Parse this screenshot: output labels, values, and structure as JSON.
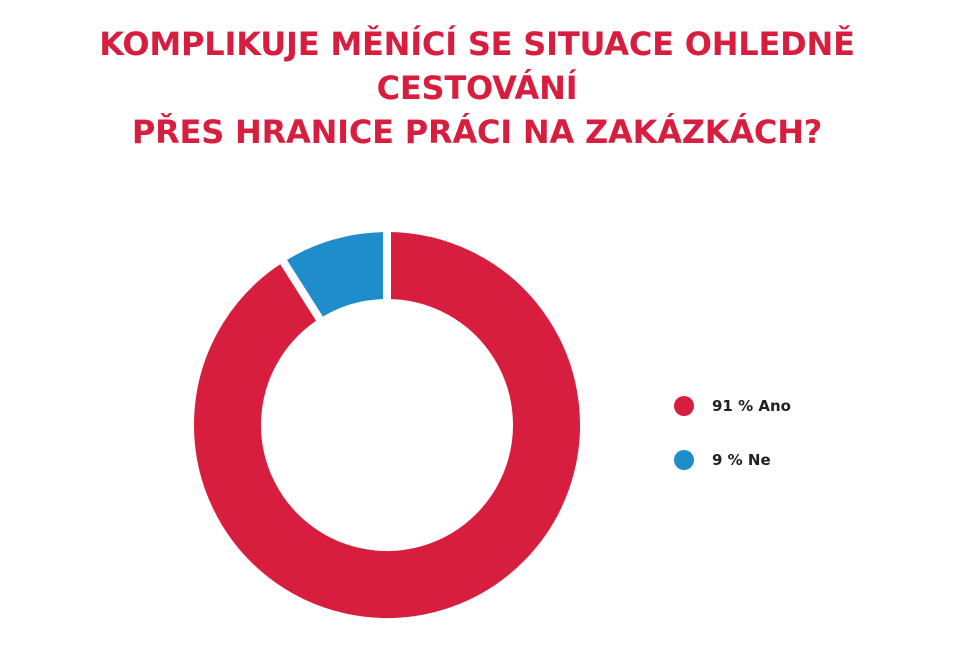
{
  "chart_data": {
    "type": "pie",
    "style": "donut",
    "title_lines": [
      "KOMPLIKUJE MĚNÍCÍ SE SITUACE OHLEDNĚ CESTOVÁNÍ",
      "PŘES HRANICE PRÁCI NA ZAKÁZKÁCH?"
    ],
    "slices": [
      {
        "label": "Ano",
        "value": 91,
        "legend_text": "91 % Ano",
        "color": "#d81e3f"
      },
      {
        "label": "Ne",
        "value": 9,
        "legend_text": "9 % Ne",
        "color": "#1f8ccc"
      }
    ],
    "legend_position": "right",
    "title_color": "#d81e3f"
  }
}
